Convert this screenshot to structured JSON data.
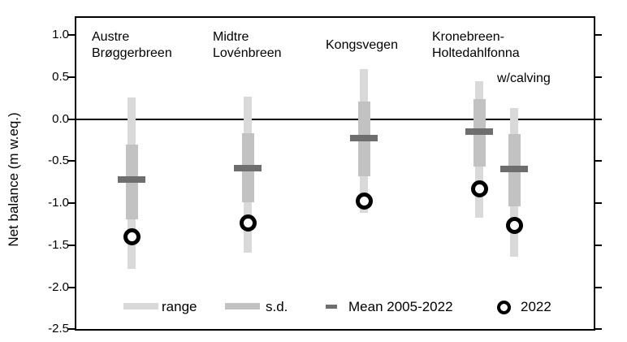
{
  "chart_data": {
    "type": "range-bar",
    "title": "",
    "xlabel": "",
    "ylabel": "Net balance (m w.eq.)",
    "ylim": [
      -2.5,
      1.0
    ],
    "yticks": [
      "1.0",
      "0.5",
      "0.0",
      "-0.5",
      "-1.0",
      "-1.5",
      "-2.0",
      "-2.5"
    ],
    "grid": false,
    "zero_line": 0.0,
    "legend_position": "bottom-inside",
    "series": [
      {
        "name": "Austre Brøggerbreen",
        "label_lines": [
          "Austre",
          "Brøggerbreen"
        ],
        "range": [
          -1.78,
          0.26
        ],
        "sd": [
          -1.19,
          -0.3
        ],
        "mean_2005_2022": -0.72,
        "value_2022": -1.4
      },
      {
        "name": "Midtre Lovénbreen",
        "label_lines": [
          "Midtre",
          "Lovénbreen"
        ],
        "range": [
          -1.59,
          0.27
        ],
        "sd": [
          -0.99,
          -0.17
        ],
        "mean_2005_2022": -0.58,
        "value_2022": -1.24
      },
      {
        "name": "Kongsvegen",
        "label_lines": [
          "Kongsvegen"
        ],
        "range": [
          -1.12,
          0.59
        ],
        "sd": [
          -0.68,
          0.21
        ],
        "mean_2005_2022": -0.23,
        "value_2022": -0.98
      },
      {
        "name": "Kronebreen-Holtedahlfonna",
        "label_lines": [
          "Kronebreen-",
          "Holtedahlfonna"
        ],
        "range": [
          -1.17,
          0.45
        ],
        "sd": [
          -0.57,
          0.24
        ],
        "mean_2005_2022": -0.15,
        "value_2022": -0.83
      },
      {
        "name": "Kronebreen-Holtedahlfonna w/calving",
        "label_lines": [
          "w/calving"
        ],
        "range": [
          -1.64,
          0.13
        ],
        "sd": [
          -1.04,
          -0.18
        ],
        "mean_2005_2022": -0.59,
        "value_2022": -1.27
      }
    ],
    "legend": [
      {
        "key": "range",
        "label": "range",
        "swatch": "bar-light"
      },
      {
        "key": "sd",
        "label": "s.d.",
        "swatch": "bar-medium"
      },
      {
        "key": "mean",
        "label": "Mean 2005-2022",
        "swatch": "dash-dark"
      },
      {
        "key": "y2022",
        "label": "2022",
        "swatch": "open-circle"
      }
    ],
    "colors": {
      "range": "#d9d9d9",
      "sd": "#c2c2c2",
      "mean": "#6e6e6e",
      "circle_stroke": "#000000",
      "circle_fill": "#ffffff",
      "axis": "#000000"
    }
  }
}
